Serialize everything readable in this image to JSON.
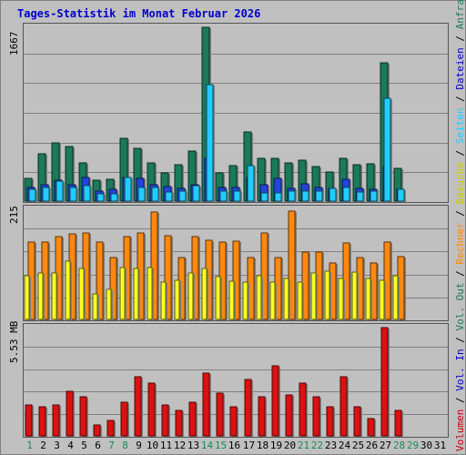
{
  "title": "Tages-Statistik im Monat Februar 2026",
  "colors": {
    "anfragen": "#1a7a5a",
    "dateien": "#2244dd",
    "seiten": "#22ccff",
    "besuche": "#ffff22",
    "rechner": "#ff8811",
    "volumen": "#dd1111",
    "weekday_label": "#000000",
    "weekend_label": "#1a8a5a"
  },
  "right_legend": [
    {
      "text": "Volumen",
      "color": "#cc0000"
    },
    {
      "text": " / ",
      "color": "#000000"
    },
    {
      "text": "Vol. In",
      "color": "#0000cc"
    },
    {
      "text": " / ",
      "color": "#000000"
    },
    {
      "text": "Vol. Out",
      "color": "#1a7a5a"
    },
    {
      "text": " / ",
      "color": "#000000"
    },
    {
      "text": "Rechner",
      "color": "#ff8800"
    },
    {
      "text": " / ",
      "color": "#000000"
    },
    {
      "text": "Besuche",
      "color": "#cccc00"
    },
    {
      "text": " / ",
      "color": "#000000"
    },
    {
      "text": "Seiten",
      "color": "#22ccff"
    },
    {
      "text": " / ",
      "color": "#000000"
    },
    {
      "text": "Dateien",
      "color": "#0000cc"
    },
    {
      "text": " / ",
      "color": "#000000"
    },
    {
      "text": "Anfragen",
      "color": "#1a7a5a"
    }
  ],
  "chart_data": [
    {
      "type": "bar",
      "panel": "hits",
      "ylabel": "1667",
      "ylim": [
        0,
        1667
      ],
      "grid": true,
      "categories": [
        "1",
        "2",
        "3",
        "4",
        "5",
        "6",
        "7",
        "8",
        "9",
        "10",
        "11",
        "12",
        "13",
        "14",
        "15",
        "16",
        "17",
        "18",
        "19",
        "20",
        "21",
        "22",
        "23",
        "24",
        "25",
        "26",
        "27",
        "28",
        "29",
        "30",
        "31"
      ],
      "series": [
        {
          "name": "Anfragen",
          "values": [
            220,
            450,
            560,
            520,
            370,
            200,
            210,
            600,
            510,
            370,
            270,
            350,
            480,
            1667,
            270,
            340,
            660,
            410,
            410,
            370,
            390,
            330,
            280,
            410,
            350,
            360,
            1330,
            310,
            0,
            0,
            0
          ]
        },
        {
          "name": "Dateien",
          "values": [
            130,
            160,
            200,
            160,
            230,
            100,
            110,
            230,
            220,
            160,
            140,
            120,
            160,
            410,
            130,
            130,
            230,
            160,
            220,
            120,
            170,
            130,
            120,
            210,
            120,
            110,
            330,
            110,
            0,
            0,
            0
          ]
        },
        {
          "name": "Seiten",
          "values": [
            110,
            130,
            190,
            130,
            150,
            70,
            70,
            230,
            130,
            130,
            90,
            100,
            150,
            1120,
            100,
            100,
            340,
            80,
            80,
            100,
            100,
            100,
            120,
            130,
            90,
            100,
            990,
            110,
            0,
            0,
            0
          ]
        }
      ]
    },
    {
      "type": "bar",
      "panel": "visits",
      "ylabel": "215",
      "ylim": [
        0,
        215
      ],
      "grid": true,
      "categories": [
        "1",
        "2",
        "3",
        "4",
        "5",
        "6",
        "7",
        "8",
        "9",
        "10",
        "11",
        "12",
        "13",
        "14",
        "15",
        "16",
        "17",
        "18",
        "19",
        "20",
        "21",
        "22",
        "23",
        "24",
        "25",
        "26",
        "27",
        "28",
        "29",
        "30",
        "31"
      ],
      "series": [
        {
          "name": "Besuche",
          "values": [
            85,
            90,
            90,
            112,
            98,
            50,
            58,
            100,
            98,
            101,
            72,
            76,
            90,
            98,
            82,
            74,
            72,
            85,
            72,
            80,
            72,
            89,
            94,
            79,
            91,
            79,
            75,
            85,
            0,
            0,
            0
          ]
        },
        {
          "name": "Rechner",
          "values": [
            150,
            150,
            160,
            165,
            168,
            150,
            120,
            160,
            167,
            208,
            162,
            120,
            160,
            154,
            150,
            152,
            120,
            168,
            120,
            210,
            130,
            130,
            110,
            148,
            120,
            110,
            150,
            122,
            0,
            0,
            0
          ]
        }
      ]
    },
    {
      "type": "bar",
      "panel": "volume",
      "ylabel": "5.53 MB",
      "ylim": [
        0,
        5.53
      ],
      "grid": true,
      "categories": [
        "1",
        "2",
        "3",
        "4",
        "5",
        "6",
        "7",
        "8",
        "9",
        "10",
        "11",
        "12",
        "13",
        "14",
        "15",
        "16",
        "17",
        "18",
        "19",
        "20",
        "21",
        "22",
        "23",
        "24",
        "25",
        "26",
        "27",
        "28",
        "29",
        "30",
        "31"
      ],
      "series": [
        {
          "name": "Volumen",
          "values": [
            1.6,
            1.5,
            1.6,
            2.3,
            2.0,
            0.55,
            0.8,
            1.7,
            3.0,
            2.7,
            1.6,
            1.3,
            1.7,
            3.2,
            2.2,
            1.5,
            2.9,
            2.0,
            3.6,
            2.1,
            2.7,
            2.0,
            1.5,
            3.0,
            1.5,
            0.9,
            5.53,
            1.3,
            0,
            0,
            0
          ]
        }
      ]
    }
  ],
  "days": [
    {
      "label": "1",
      "weekend": true
    },
    {
      "label": "2",
      "weekend": false
    },
    {
      "label": "3",
      "weekend": false
    },
    {
      "label": "4",
      "weekend": false
    },
    {
      "label": "5",
      "weekend": false
    },
    {
      "label": "6",
      "weekend": false
    },
    {
      "label": "7",
      "weekend": true
    },
    {
      "label": "8",
      "weekend": true
    },
    {
      "label": "9",
      "weekend": false
    },
    {
      "label": "10",
      "weekend": false
    },
    {
      "label": "11",
      "weekend": false
    },
    {
      "label": "12",
      "weekend": false
    },
    {
      "label": "13",
      "weekend": false
    },
    {
      "label": "14",
      "weekend": true
    },
    {
      "label": "15",
      "weekend": true
    },
    {
      "label": "16",
      "weekend": false
    },
    {
      "label": "17",
      "weekend": false
    },
    {
      "label": "18",
      "weekend": false
    },
    {
      "label": "19",
      "weekend": false
    },
    {
      "label": "20",
      "weekend": false
    },
    {
      "label": "21",
      "weekend": true
    },
    {
      "label": "22",
      "weekend": true
    },
    {
      "label": "23",
      "weekend": false
    },
    {
      "label": "24",
      "weekend": false
    },
    {
      "label": "25",
      "weekend": false
    },
    {
      "label": "26",
      "weekend": false
    },
    {
      "label": "27",
      "weekend": false
    },
    {
      "label": "28",
      "weekend": true
    },
    {
      "label": "29",
      "weekend": true
    },
    {
      "label": "30",
      "weekend": false
    },
    {
      "label": "31",
      "weekend": false
    }
  ]
}
